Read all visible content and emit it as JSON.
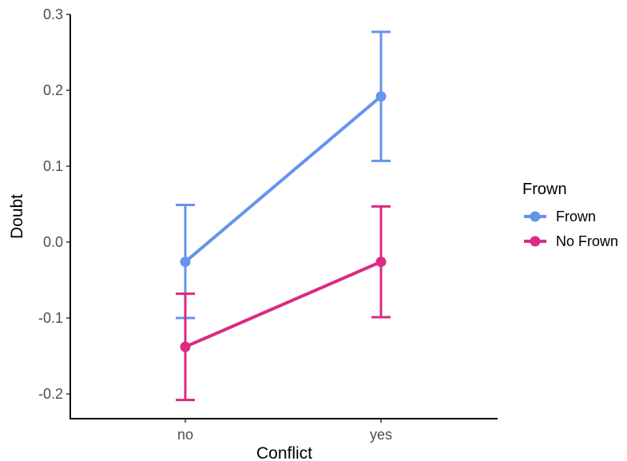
{
  "chart_data": {
    "type": "line",
    "xlabel": "Conflict",
    "ylabel": "Doubt",
    "categories": [
      "no",
      "yes"
    ],
    "ylim": [
      -0.23,
      0.3
    ],
    "yticks": [
      -0.2,
      -0.1,
      0.0,
      0.1,
      0.2,
      0.3
    ],
    "ytick_labels": [
      "-0.2",
      "-0.1",
      "0.0",
      "0.1",
      "0.2",
      "0.3"
    ],
    "grid": false,
    "legend": {
      "title": "Frown",
      "placement": "right"
    },
    "series": [
      {
        "name": "Frown",
        "color": "#6495ED",
        "values": [
          -0.026,
          0.192
        ],
        "err_low": [
          -0.1,
          0.107
        ],
        "err_high": [
          0.049,
          0.277
        ]
      },
      {
        "name": "No Frown",
        "color": "#DB2A82",
        "values": [
          -0.138,
          -0.026
        ],
        "err_low": [
          -0.208,
          -0.099
        ],
        "err_high": [
          -0.068,
          0.047
        ]
      }
    ]
  }
}
